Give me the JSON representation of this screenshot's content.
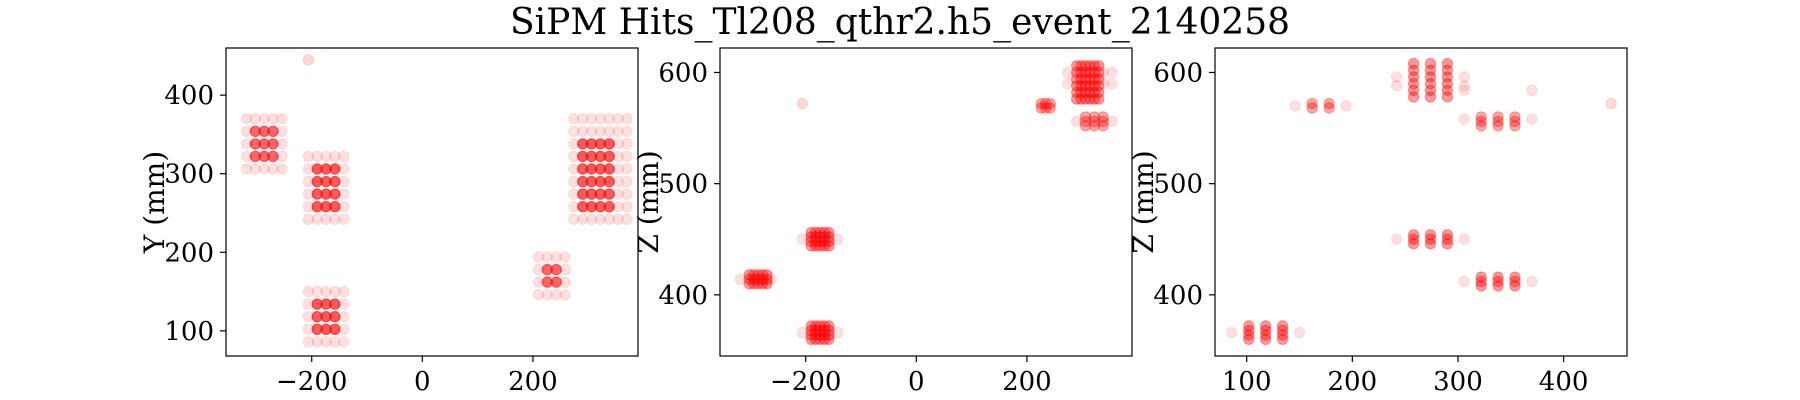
{
  "title": "SiPM Hits_Tl208_qthr2.h5_event_2140258",
  "colors": {
    "marker": "#ff0000",
    "axes": "#000000"
  },
  "chart_data": [
    {
      "type": "scatter",
      "xlabel": "",
      "ylabel": "Y (mm)",
      "xlim": [
        -355,
        390
      ],
      "ylim": [
        68,
        460
      ],
      "xticks": [
        -200,
        0,
        200
      ],
      "yticks": [
        100,
        200,
        300,
        400
      ],
      "clusters": [
        {
          "xs": [
            -302,
            -286,
            -270
          ],
          "ys": [
            322,
            338,
            354
          ],
          "alpha": 0.55
        },
        {
          "xs": [
            -318,
            -302,
            -286,
            -270,
            -254
          ],
          "ys": [
            306,
            322,
            338,
            354,
            370
          ],
          "alpha": 0.12
        },
        {
          "xs": [
            -190,
            -174,
            -158
          ],
          "ys": [
            258,
            274,
            290,
            306
          ],
          "alpha": 0.6
        },
        {
          "xs": [
            -206,
            -190,
            -174,
            -158,
            -142
          ],
          "ys": [
            242,
            258,
            274,
            290,
            306,
            322
          ],
          "alpha": 0.12
        },
        {
          "xs": [
            -190,
            -174,
            -158
          ],
          "ys": [
            102,
            118,
            134
          ],
          "alpha": 0.6
        },
        {
          "xs": [
            -206,
            -190,
            -174,
            -158,
            -142
          ],
          "ys": [
            86,
            102,
            118,
            134,
            150
          ],
          "alpha": 0.12
        },
        {
          "xs": [
            226,
            242
          ],
          "ys": [
            162,
            178
          ],
          "alpha": 0.55
        },
        {
          "xs": [
            210,
            226,
            242,
            258
          ],
          "ys": [
            146,
            162,
            178,
            194
          ],
          "alpha": 0.12
        },
        {
          "xs": [
            290,
            306,
            322,
            338
          ],
          "ys": [
            258,
            274,
            290,
            306,
            322,
            338
          ],
          "alpha": 0.6
        },
        {
          "xs": [
            274,
            290,
            306,
            322,
            338,
            354,
            370
          ],
          "ys": [
            242,
            258,
            274,
            290,
            306,
            322,
            338,
            354,
            370
          ],
          "alpha": 0.12
        }
      ],
      "points": [
        {
          "x": -206,
          "y": 445,
          "alpha": 0.15
        }
      ]
    },
    {
      "type": "scatter",
      "xlabel": "",
      "ylabel": "Z (mm)",
      "xlim": [
        -355,
        390
      ],
      "ylim": [
        345,
        622
      ],
      "xticks": [
        -200,
        0,
        200
      ],
      "yticks": [
        400,
        500,
        600
      ],
      "clusters": [
        {
          "xs": [
            -302,
            -294,
            -286,
            -278,
            -270
          ],
          "ys": [
            410,
            414,
            418
          ],
          "alpha": 0.4
        },
        {
          "xs": [
            -318,
            -262
          ],
          "ys": [
            414
          ],
          "alpha": 0.12
        },
        {
          "xs": [
            -190,
            -182,
            -174,
            -166,
            -158
          ],
          "ys": [
            444,
            448,
            452,
            456
          ],
          "alpha": 0.4
        },
        {
          "xs": [
            -206,
            -142
          ],
          "ys": [
            450
          ],
          "alpha": 0.12
        },
        {
          "xs": [
            -190,
            -182,
            -174,
            -166,
            -158
          ],
          "ys": [
            360,
            364,
            368,
            372
          ],
          "alpha": 0.4
        },
        {
          "xs": [
            -206,
            -142
          ],
          "ys": [
            366
          ],
          "alpha": 0.12
        },
        {
          "xs": [
            226,
            234,
            242
          ],
          "ys": [
            568,
            572
          ],
          "alpha": 0.35
        },
        {
          "xs": [
            290,
            298,
            306,
            314,
            322,
            330
          ],
          "ys": [
            576,
            582,
            588,
            594,
            600,
            606
          ],
          "alpha": 0.4
        },
        {
          "xs": [
            274,
            338,
            354
          ],
          "ys": [
            590,
            600
          ],
          "alpha": 0.12
        },
        {
          "xs": [
            306,
            322,
            338
          ],
          "ys": [
            552,
            556,
            560
          ],
          "alpha": 0.35
        },
        {
          "xs": [
            290,
            354
          ],
          "ys": [
            556
          ],
          "alpha": 0.12
        }
      ],
      "points": [
        {
          "x": -206,
          "y": 572,
          "alpha": 0.15
        }
      ]
    },
    {
      "type": "scatter",
      "xlabel": "",
      "ylabel": "Z (mm)",
      "xlim": [
        70,
        460
      ],
      "ylim": [
        345,
        622
      ],
      "xticks": [
        100,
        200,
        300,
        400
      ],
      "yticks": [
        400,
        500,
        600
      ],
      "clusters": [
        {
          "xs": [
            102,
            118,
            134
          ],
          "ys": [
            360,
            364,
            368,
            372
          ],
          "alpha": 0.4
        },
        {
          "xs": [
            86,
            150
          ],
          "ys": [
            366
          ],
          "alpha": 0.12
        },
        {
          "xs": [
            258,
            274,
            290
          ],
          "ys": [
            446,
            450,
            454
          ],
          "alpha": 0.4
        },
        {
          "xs": [
            242,
            306
          ],
          "ys": [
            450
          ],
          "alpha": 0.12
        },
        {
          "xs": [
            322,
            338,
            354
          ],
          "ys": [
            408,
            412,
            416
          ],
          "alpha": 0.4
        },
        {
          "xs": [
            306,
            370
          ],
          "ys": [
            412
          ],
          "alpha": 0.12
        },
        {
          "xs": [
            162,
            178
          ],
          "ys": [
            568,
            572
          ],
          "alpha": 0.35
        },
        {
          "xs": [
            146,
            194
          ],
          "ys": [
            570
          ],
          "alpha": 0.12
        },
        {
          "xs": [
            258,
            274,
            290
          ],
          "ys": [
            578,
            584,
            590,
            596,
            602,
            608
          ],
          "alpha": 0.4
        },
        {
          "xs": [
            242,
            306
          ],
          "ys": [
            588,
            596
          ],
          "alpha": 0.12
        },
        {
          "xs": [
            322,
            338,
            354
          ],
          "ys": [
            552,
            556,
            560
          ],
          "alpha": 0.35
        },
        {
          "xs": [
            306,
            370
          ],
          "ys": [
            558,
            584
          ],
          "alpha": 0.12
        }
      ],
      "points": [
        {
          "x": 445,
          "y": 572,
          "alpha": 0.15
        }
      ]
    }
  ]
}
